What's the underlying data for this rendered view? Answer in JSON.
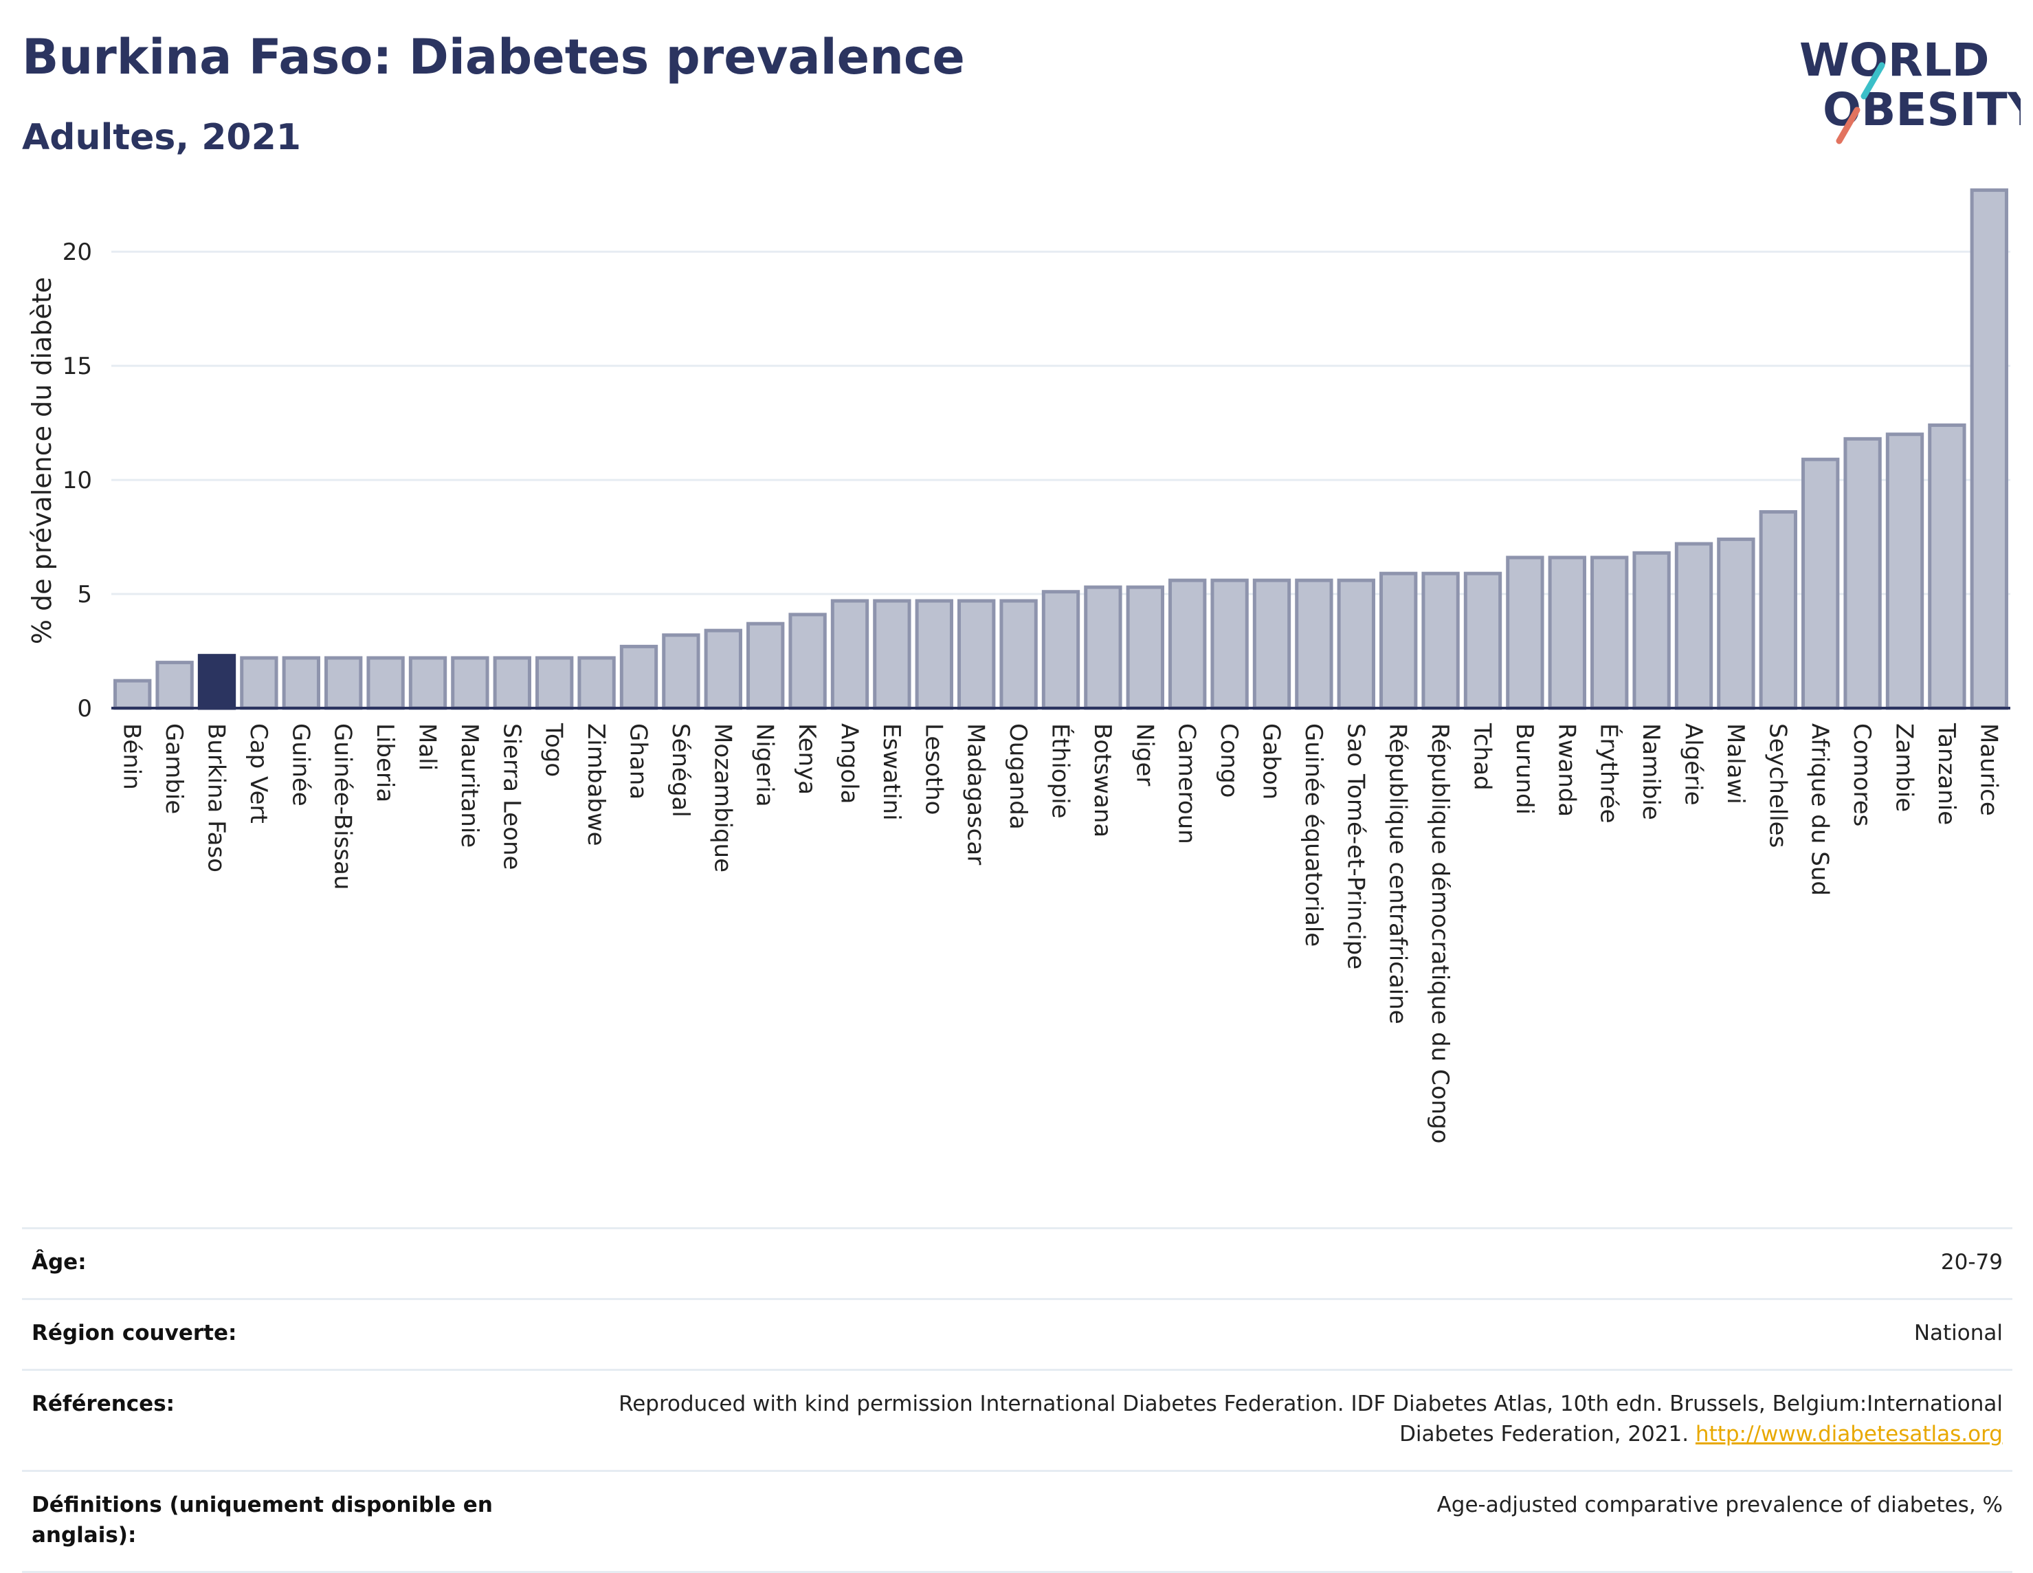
{
  "header": {
    "title": "Burkina Faso: Diabetes prevalence",
    "subtitle": "Adultes, 2021"
  },
  "logo": {
    "line1": "WORLD",
    "line2": "OBESITY",
    "colors": {
      "navy": "#2b3460",
      "teal": "#3bbfc8",
      "coral": "#e2735f"
    }
  },
  "chart_data": {
    "type": "bar",
    "title": "Burkina Faso: Diabetes prevalence",
    "subtitle": "Adultes, 2021",
    "xlabel": "",
    "ylabel": "% de prévalence du diabète",
    "ylim": [
      0,
      23.5
    ],
    "yticks": [
      0,
      5,
      10,
      15,
      20
    ],
    "grid": true,
    "highlight": "Burkina Faso",
    "colors": {
      "bar": "#bcc1d0",
      "bar_edge": "#8e94ad",
      "highlight": "#2b3460",
      "grid": "#e6ecf2",
      "axis": "#2b3460"
    },
    "categories": [
      "Bénin",
      "Gambie",
      "Burkina Faso",
      "Cap Vert",
      "Guinée",
      "Guinée-Bissau",
      "Liberia",
      "Mali",
      "Mauritanie",
      "Sierra Leone",
      "Togo",
      "Zimbabwe",
      "Ghana",
      "Sénégal",
      "Mozambique",
      "Nigeria",
      "Kenya",
      "Angola",
      "Eswatini",
      "Lesotho",
      "Madagascar",
      "Ouganda",
      "Éthiopie",
      "Botswana",
      "Niger",
      "Cameroun",
      "Congo",
      "Gabon",
      "Guinée équatoriale",
      "Sao Tomé-et-Principe",
      "République centrafricaine",
      "République démocratique du Congo",
      "Tchad",
      "Burundi",
      "Rwanda",
      "Érythrée",
      "Namibie",
      "Algérie",
      "Malawi",
      "Seychelles",
      "Afrique du Sud",
      "Comores",
      "Zambie",
      "Tanzanie",
      "Maurice"
    ],
    "values": [
      1.2,
      2.0,
      2.3,
      2.2,
      2.2,
      2.2,
      2.2,
      2.2,
      2.2,
      2.2,
      2.2,
      2.2,
      2.7,
      3.2,
      3.4,
      3.7,
      4.1,
      4.7,
      4.7,
      4.7,
      4.7,
      4.7,
      5.1,
      5.3,
      5.3,
      5.6,
      5.6,
      5.6,
      5.6,
      5.6,
      5.9,
      5.9,
      5.9,
      6.6,
      6.6,
      6.6,
      6.8,
      7.2,
      7.4,
      8.6,
      10.9,
      11.8,
      12.0,
      12.4,
      22.7
    ]
  },
  "details": {
    "age": {
      "label": "Âge:",
      "value": "20-79"
    },
    "region": {
      "label": "Région couverte:",
      "value": "National"
    },
    "references": {
      "label": "Références:",
      "value": "Reproduced with kind permission International Diabetes Federation.  IDF Diabetes Atlas, 10th edn. Brussels, Belgium:International Diabetes Federation, 2021. ",
      "link": "http://www.diabetesatlas.org"
    },
    "definitions": {
      "label": "Définitions (uniquement disponible en anglais):",
      "value": "Age-adjusted comparative prevalence of diabetes, %"
    }
  }
}
